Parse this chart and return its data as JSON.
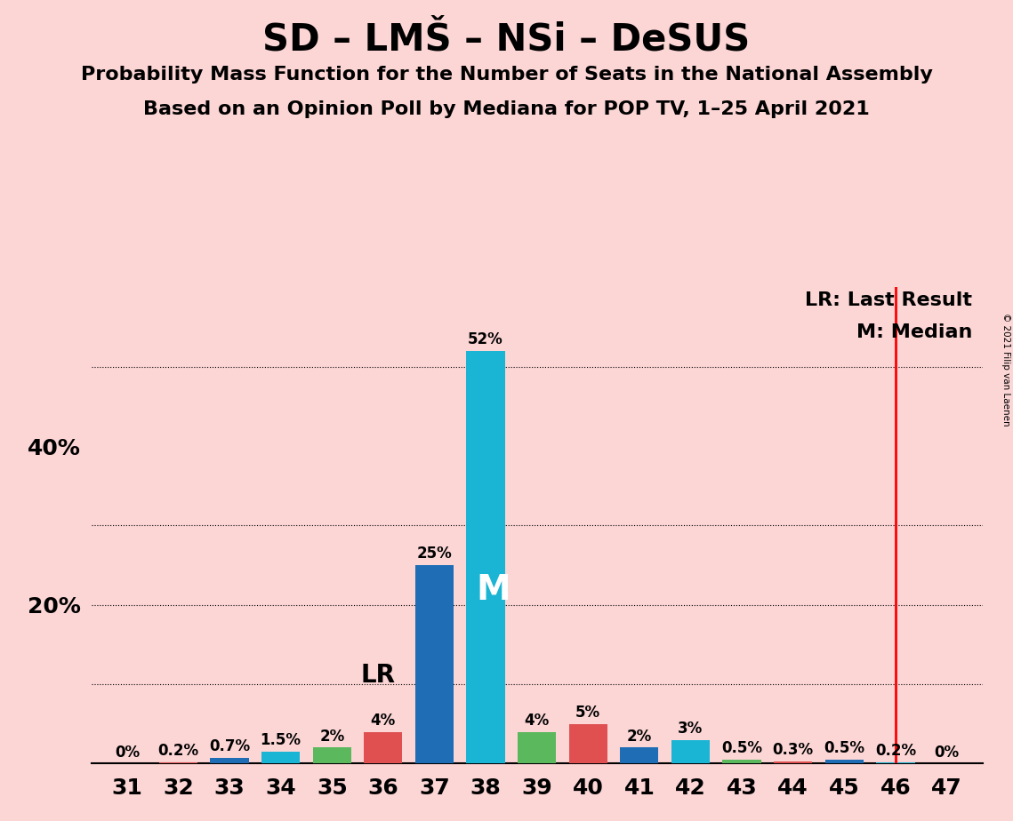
{
  "title": "SD – LMŠ – NSi – DeSUS",
  "subtitle1": "Probability Mass Function for the Number of Seats in the National Assembly",
  "subtitle2": "Based on an Opinion Poll by Mediana for POP TV, 1–25 April 2021",
  "copyright": "© 2021 Filip van Laenen",
  "seats": [
    31,
    32,
    33,
    34,
    35,
    36,
    37,
    38,
    39,
    40,
    41,
    42,
    43,
    44,
    45,
    46,
    47
  ],
  "values": [
    0.0,
    0.2,
    0.7,
    1.5,
    2.0,
    4.0,
    25.0,
    52.0,
    4.0,
    5.0,
    2.0,
    3.0,
    0.5,
    0.3,
    0.5,
    0.2,
    0.0
  ],
  "labels": [
    "0%",
    "0.2%",
    "0.7%",
    "1.5%",
    "2%",
    "4%",
    "25%",
    "52%",
    "4%",
    "5%",
    "2%",
    "3%",
    "0.5%",
    "0.3%",
    "0.5%",
    "0.2%",
    "0%"
  ],
  "bar_colors": [
    "#e05050",
    "#e05050",
    "#1e6db5",
    "#1ab5d4",
    "#5cb85c",
    "#e05050",
    "#1e6db5",
    "#1ab5d4",
    "#5cb85c",
    "#e05050",
    "#1e6db5",
    "#1ab5d4",
    "#5cb85c",
    "#e05050",
    "#1e6db5",
    "#1ab5d4",
    "#e05050"
  ],
  "median_seat": 38,
  "lr_seat": 46,
  "lr_label": "LR",
  "lr_annotation_seat": 36,
  "median_label": "M",
  "background_color": "#fcd5d5",
  "ylim": [
    0,
    60
  ],
  "grid_yticks": [
    10,
    20,
    30,
    50
  ],
  "legend_lr": "LR: Last Result",
  "legend_m": "M: Median",
  "title_fontsize": 30,
  "subtitle_fontsize": 16,
  "label_fontsize": 12,
  "tick_fontsize": 18,
  "legend_fontsize": 16,
  "lr_annotation_fontsize": 20,
  "median_label_fontsize": 28
}
